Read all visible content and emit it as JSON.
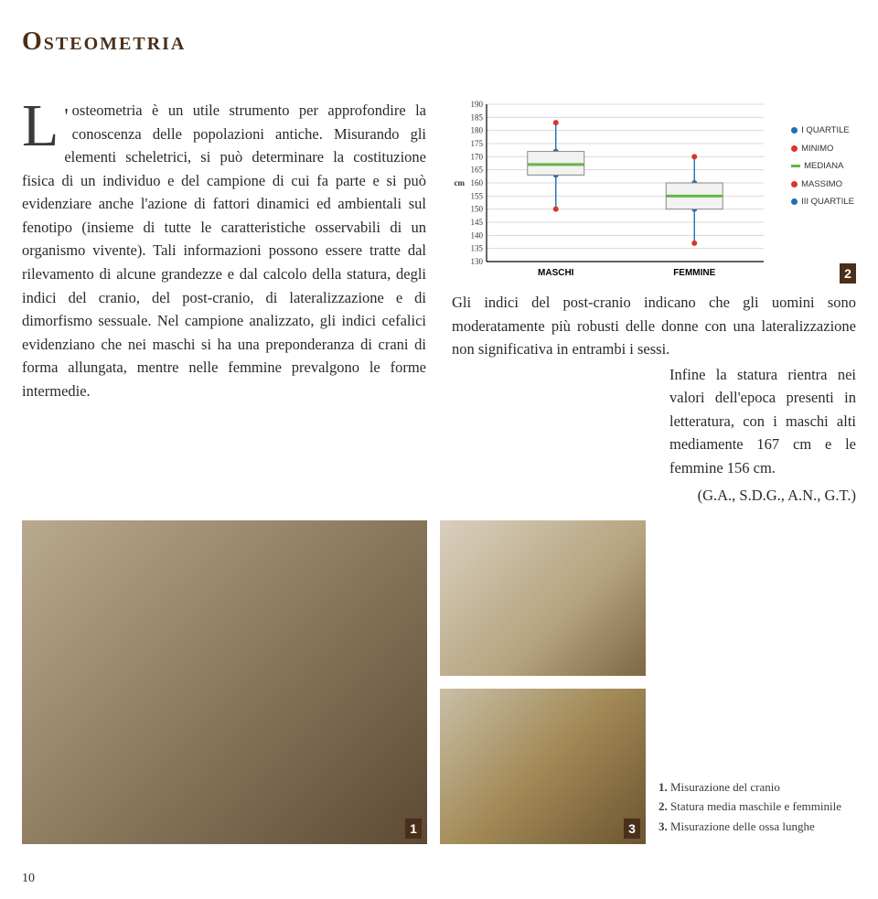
{
  "title": "Osteometria",
  "para_left": "osteometria è un utile strumento per approfondire la conoscenza delle popolazioni antiche. Misurando gli elementi scheletrici, si può determinare la costituzione fisica di un individuo e del campione di cui fa parte e si può evidenziare anche l'azione di fattori dinamici ed ambientali sul fenotipo (insieme di tutte le caratteristiche osservabili di un organismo vivente). Tali informazioni possono essere tratte dal rilevamento di alcune grandezze e dal calcolo della statura, degli indici del cranio, del post-cranio, di lateralizzazione e di dimorfismo sessuale. Nel campione analizzato, gli indici cefalici evidenziano che nei maschi si ha una preponderanza di crani di forma allungata, mentre nelle femmine prevalgono le forme intermedie.",
  "para_right_top": "Gli indici del post-cranio indicano che gli uomini sono moderatamente più robusti delle donne con una lateralizzazione non significativa in entrambi i sessi.",
  "para_right_inset": "Infine la statura rientra nei valori dell'epoca presenti in letteratura, con i maschi alti mediamente 167 cm e le femmine 156 cm.",
  "authors": "(G.A., S.D.G., A.N., G.T.)",
  "chart": {
    "type": "boxplot",
    "y_unit": "cm",
    "ylim": [
      130,
      190
    ],
    "ytick_step": 5,
    "yticks": [
      130,
      135,
      140,
      145,
      150,
      155,
      160,
      165,
      170,
      175,
      180,
      185,
      190
    ],
    "categories": [
      "MASCHI",
      "FEMMINE"
    ],
    "grid_color": "#d9d9d9",
    "axis_color": "#000000",
    "background_color": "#ffffff",
    "series": [
      {
        "cat": "MASCHI",
        "min": 150,
        "q1": 163,
        "median": 167,
        "q3": 172,
        "max": 183,
        "box_color": "#f2f2f2",
        "median_color": "#66b545",
        "whisker_color": "#1f6fb3"
      },
      {
        "cat": "FEMMINE",
        "min": 137,
        "q1": 150,
        "median": 155,
        "q3": 160,
        "max": 170,
        "box_color": "#f2f2f2",
        "median_color": "#66b545",
        "whisker_color": "#1f6fb3"
      }
    ],
    "legend": [
      {
        "label": "I QUARTILE",
        "type": "dot",
        "color": "#1f6fb3"
      },
      {
        "label": "MINIMO",
        "type": "dot",
        "color": "#d9352b"
      },
      {
        "label": "MEDIANA",
        "type": "bar",
        "color": "#66b545"
      },
      {
        "label": "MASSIMO",
        "type": "dot",
        "color": "#d9352b"
      },
      {
        "label": "III QUARTILE",
        "type": "dot",
        "color": "#1f6fb3"
      }
    ]
  },
  "figure_labels": {
    "f1": "1",
    "f2": "2",
    "f3": "3"
  },
  "captions": [
    {
      "n": "1.",
      "t": "Misurazione del cranio"
    },
    {
      "n": "2.",
      "t": "Statura media maschile e femminile"
    },
    {
      "n": "3.",
      "t": "Misurazione delle ossa lunghe"
    }
  ],
  "page_number": "10"
}
